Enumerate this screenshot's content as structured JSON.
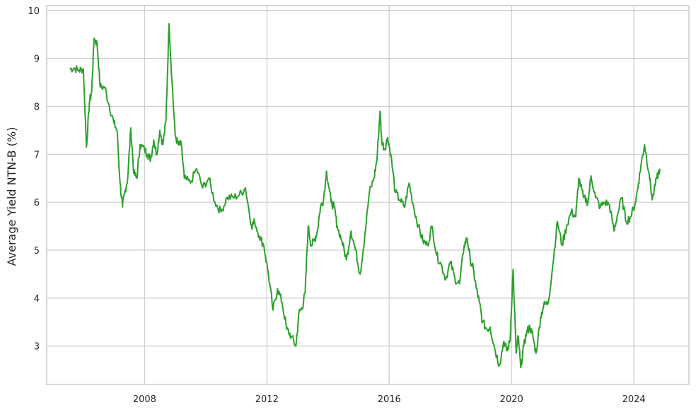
{
  "chart_data": {
    "type": "line",
    "title": "",
    "xlabel": "",
    "ylabel": "Average Yield NTN-B (%)",
    "xlim": [
      2004.8,
      2025.8
    ],
    "ylim": [
      2.2,
      10.1
    ],
    "x_ticks": [
      2008,
      2012,
      2016,
      2020,
      2024
    ],
    "y_ticks": [
      3,
      4,
      5,
      6,
      7,
      8,
      9,
      10
    ],
    "grid": true,
    "legend": "none",
    "line_color": "#2ca02c",
    "series": [
      {
        "x": [
          2005.55,
          2005.7,
          2005.85,
          2006.0,
          2006.1,
          2006.2,
          2006.27,
          2006.35,
          2006.45,
          2006.55,
          2006.7,
          2006.85,
          2007.0,
          2007.1,
          2007.2,
          2007.28,
          2007.35,
          2007.45,
          2007.55,
          2007.65,
          2007.75,
          2007.85,
          2008.0,
          2008.1,
          2008.2,
          2008.3,
          2008.4,
          2008.5,
          2008.6,
          2008.7,
          2008.8,
          2008.9,
          2009.0,
          2009.1,
          2009.2,
          2009.3,
          2009.5,
          2009.7,
          2009.9,
          2010.1,
          2010.3,
          2010.5,
          2010.7,
          2010.9,
          2011.1,
          2011.3,
          2011.5,
          2011.6,
          2011.75,
          2011.9,
          2012.05,
          2012.2,
          2012.35,
          2012.5,
          2012.65,
          2012.8,
          2012.95,
          2013.05,
          2013.15,
          2013.25,
          2013.35,
          2013.45,
          2013.55,
          2013.65,
          2013.75,
          2013.85,
          2013.95,
          2014.1,
          2014.2,
          2014.3,
          2014.45,
          2014.6,
          2014.75,
          2014.9,
          2015.05,
          2015.2,
          2015.35,
          2015.5,
          2015.6,
          2015.7,
          2015.75,
          2015.85,
          2015.95,
          2016.05,
          2016.2,
          2016.35,
          2016.5,
          2016.65,
          2016.8,
          2016.95,
          2017.1,
          2017.25,
          2017.4,
          2017.55,
          2017.7,
          2017.85,
          2018.0,
          2018.15,
          2018.3,
          2018.45,
          2018.55,
          2018.65,
          2018.75,
          2018.85,
          2018.95,
          2019.05,
          2019.2,
          2019.3,
          2019.45,
          2019.6,
          2019.75,
          2019.85,
          2019.95,
          2020.05,
          2020.15,
          2020.22,
          2020.3,
          2020.4,
          2020.5,
          2020.6,
          2020.7,
          2020.8,
          2020.95,
          2021.05,
          2021.2,
          2021.35,
          2021.5,
          2021.65,
          2021.8,
          2021.95,
          2022.1,
          2022.2,
          2022.35,
          2022.5,
          2022.6,
          2022.75,
          2022.9,
          2023.05,
          2023.2,
          2023.35,
          2023.45,
          2023.6,
          2023.75,
          2023.9,
          2024.05,
          2024.15,
          2024.25,
          2024.35,
          2024.5,
          2024.6,
          2024.75,
          2024.85
        ],
        "y": [
          8.78,
          8.8,
          8.75,
          8.78,
          7.15,
          8.1,
          8.3,
          9.42,
          9.3,
          8.4,
          8.4,
          8.0,
          7.65,
          7.5,
          6.4,
          5.9,
          6.2,
          6.5,
          7.55,
          6.6,
          6.5,
          7.2,
          7.1,
          7.0,
          6.9,
          7.3,
          7.0,
          7.5,
          7.2,
          7.7,
          9.72,
          8.5,
          7.4,
          7.2,
          7.2,
          6.5,
          6.4,
          6.7,
          6.3,
          6.5,
          6.0,
          5.8,
          6.1,
          6.1,
          6.15,
          6.3,
          5.5,
          5.6,
          5.3,
          5.1,
          4.5,
          3.75,
          4.2,
          3.9,
          3.35,
          3.2,
          3.0,
          3.7,
          3.8,
          4.1,
          5.5,
          5.1,
          5.2,
          5.4,
          5.9,
          6.05,
          6.65,
          6.0,
          5.9,
          5.5,
          5.2,
          4.8,
          5.4,
          5.0,
          4.5,
          5.3,
          6.2,
          6.5,
          6.9,
          7.9,
          7.3,
          7.1,
          7.35,
          7.0,
          6.2,
          6.05,
          5.9,
          6.4,
          5.9,
          5.5,
          5.2,
          5.1,
          5.5,
          4.9,
          4.7,
          4.4,
          4.75,
          4.4,
          4.3,
          5.1,
          5.25,
          4.8,
          4.6,
          4.2,
          3.9,
          3.5,
          3.35,
          3.4,
          2.95,
          2.6,
          3.1,
          2.9,
          3.1,
          4.6,
          2.85,
          3.2,
          2.55,
          3.0,
          3.3,
          3.4,
          3.2,
          2.85,
          3.6,
          3.85,
          3.9,
          4.7,
          5.6,
          5.1,
          5.5,
          5.8,
          5.7,
          6.5,
          6.1,
          6.0,
          6.55,
          6.1,
          5.9,
          6.0,
          5.95,
          5.4,
          5.7,
          6.1,
          5.6,
          5.7,
          6.0,
          6.4,
          6.85,
          7.2,
          6.6,
          6.05,
          6.5,
          6.7
        ]
      }
    ]
  }
}
